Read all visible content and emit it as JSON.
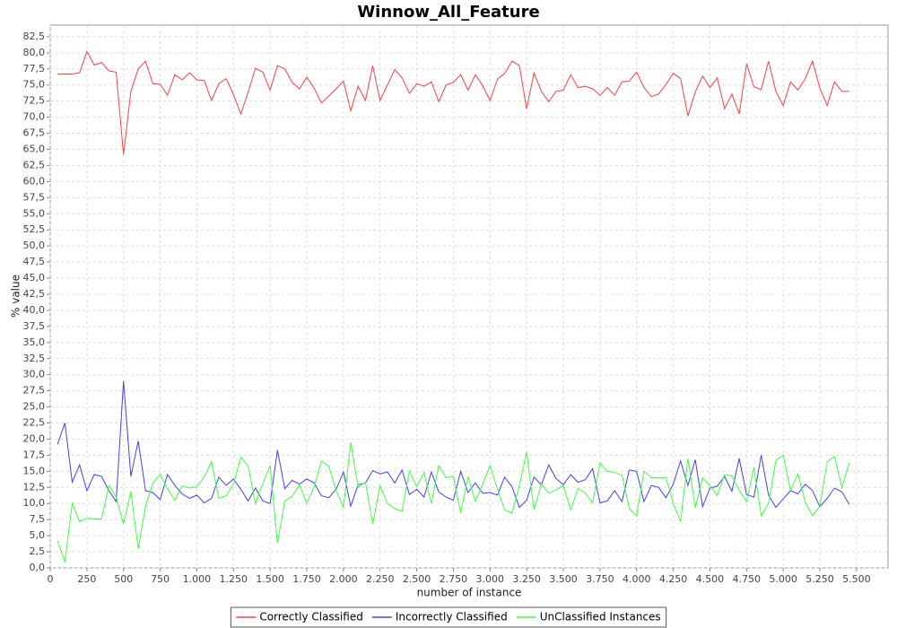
{
  "chart_data": {
    "type": "line",
    "title": "Winnow_All_Feature",
    "x_label": "number of instance",
    "y_label": "% value",
    "x": [
      50,
      100,
      150,
      200,
      250,
      300,
      350,
      400,
      450,
      500,
      550,
      600,
      650,
      700,
      750,
      800,
      850,
      900,
      950,
      1000,
      1050,
      1100,
      1150,
      1200,
      1250,
      1300,
      1350,
      1400,
      1450,
      1500,
      1550,
      1600,
      1650,
      1700,
      1750,
      1800,
      1850,
      1900,
      1950,
      2000,
      2050,
      2100,
      2150,
      2200,
      2250,
      2300,
      2350,
      2400,
      2450,
      2500,
      2550,
      2600,
      2650,
      2700,
      2750,
      2800,
      2850,
      2900,
      2950,
      3000,
      3050,
      3100,
      3150,
      3200,
      3250,
      3300,
      3350,
      3400,
      3450,
      3500,
      3550,
      3600,
      3650,
      3700,
      3750,
      3800,
      3850,
      3900,
      3950,
      4000,
      4050,
      4100,
      4150,
      4200,
      4250,
      4300,
      4350,
      4400,
      4450,
      4500,
      4550,
      4600,
      4650,
      4700,
      4750,
      4800,
      4850,
      4900,
      4950,
      5000,
      5050,
      5100,
      5150,
      5200,
      5250,
      5300,
      5350,
      5400,
      5450
    ],
    "series": [
      {
        "name": "Correctly Classified",
        "color": "#ff4040",
        "values": [
          76.7,
          76.7,
          76.7,
          76.9,
          80.2,
          78.1,
          78.5,
          77.2,
          77.0,
          64.2,
          74.0,
          77.5,
          78.7,
          75.2,
          75.1,
          73.4,
          76.6,
          75.8,
          76.9,
          75.8,
          75.7,
          72.6,
          75.2,
          76.0,
          73.5,
          70.5,
          73.9,
          77.6,
          77.0,
          74.2,
          78.0,
          77.5,
          75.4,
          74.4,
          76.2,
          74.5,
          72.2,
          73.3,
          74.4,
          75.6,
          71.0,
          74.8,
          72.6,
          78.0,
          72.6,
          75.0,
          77.4,
          76.1,
          73.7,
          75.2,
          74.8,
          75.5,
          72.4,
          75.0,
          75.4,
          76.6,
          74.2,
          76.6,
          74.9,
          72.6,
          75.9,
          76.8,
          78.7,
          78.0,
          71.3,
          76.9,
          74.0,
          72.4,
          74.0,
          74.2,
          76.6,
          74.6,
          74.8,
          74.4,
          73.4,
          74.6,
          73.4,
          75.5,
          75.6,
          77.0,
          74.6,
          73.2,
          73.6,
          75.1,
          76.8,
          76.0,
          70.2,
          73.9,
          76.4,
          74.6,
          76.1,
          71.3,
          73.6,
          70.5,
          78.3,
          74.7,
          74.3,
          78.7,
          74.0,
          71.8,
          75.5,
          74.2,
          76.0,
          78.7,
          74.5,
          71.8,
          75.5,
          74.0,
          74.0
        ]
      },
      {
        "name": "Incorrectly Classified",
        "color": "#4040ff",
        "values": [
          19.2,
          22.5,
          13.3,
          16.0,
          12.0,
          14.5,
          14.2,
          12.0,
          10.3,
          29.0,
          14.2,
          19.7,
          12.0,
          11.7,
          10.6,
          14.5,
          12.8,
          11.5,
          10.8,
          11.3,
          10.1,
          10.8,
          14.1,
          12.8,
          13.8,
          12.2,
          10.4,
          12.4,
          10.4,
          10.0,
          18.3,
          12.3,
          13.6,
          13.0,
          13.8,
          13.2,
          11.2,
          10.9,
          12.2,
          14.9,
          9.6,
          12.9,
          13.2,
          15.1,
          14.6,
          14.9,
          13.2,
          15.2,
          11.4,
          12.2,
          11.0,
          14.9,
          11.8,
          11.0,
          10.5,
          15.0,
          11.7,
          13.2,
          11.6,
          11.7,
          11.3,
          14.1,
          12.6,
          9.4,
          10.5,
          14.1,
          12.9,
          16.0,
          13.9,
          12.9,
          14.5,
          13.3,
          13.7,
          15.4,
          10.1,
          10.4,
          12.0,
          10.3,
          15.2,
          15.0,
          10.3,
          12.8,
          12.5,
          10.9,
          13.0,
          16.6,
          12.8,
          16.8,
          9.5,
          12.4,
          12.7,
          14.2,
          11.9,
          17.0,
          11.4,
          11.0,
          17.5,
          11.3,
          9.4,
          10.7,
          12.0,
          11.5,
          13.0,
          12.0,
          9.5,
          10.8,
          12.4,
          11.8,
          9.9
        ]
      },
      {
        "name": "UnClassified Instances",
        "color": "#40ff40",
        "values": [
          4.2,
          0.9,
          10.0,
          7.2,
          7.7,
          7.6,
          7.6,
          12.8,
          11.0,
          6.8,
          11.9,
          3.0,
          9.5,
          13.2,
          14.5,
          12.3,
          10.5,
          12.7,
          12.4,
          12.6,
          14.1,
          16.5,
          10.8,
          11.2,
          13.0,
          17.2,
          15.8,
          10.0,
          13.1,
          15.9,
          3.8,
          10.4,
          11.1,
          12.9,
          10.0,
          12.6,
          16.6,
          15.8,
          12.0,
          9.4,
          19.5,
          12.5,
          13.3,
          6.8,
          12.8,
          10.0,
          9.2,
          8.8,
          15.0,
          12.6,
          14.8,
          10.0,
          15.9,
          14.0,
          14.2,
          8.5,
          14.2,
          10.3,
          13.0,
          15.9,
          12.2,
          9.0,
          8.5,
          12.8,
          18.0,
          9.0,
          13.0,
          11.6,
          12.1,
          12.8,
          9.0,
          12.3,
          11.6,
          10.1,
          16.3,
          15.0,
          14.8,
          14.4,
          9.2,
          8.1,
          15.0,
          14.0,
          14.0,
          14.0,
          10.0,
          7.2,
          17.0,
          9.3,
          14.0,
          12.8,
          11.2,
          14.5,
          14.3,
          12.0,
          10.3,
          15.6,
          8.1,
          10.0,
          16.7,
          17.5,
          12.0,
          14.6,
          10.2,
          8.1,
          9.6,
          16.5,
          17.3,
          12.5,
          16.3
        ]
      }
    ],
    "xlim": [
      0,
      5715
    ],
    "ylim": [
      0,
      84.3
    ],
    "xticks": [
      0,
      250,
      500,
      750,
      {
        "value": 1000,
        "label": "1.000"
      },
      {
        "value": 1250,
        "label": "1.250"
      },
      {
        "value": 1500,
        "label": "1.500"
      },
      {
        "value": 1750,
        "label": "1.750"
      },
      {
        "value": 2000,
        "label": "2.000"
      },
      {
        "value": 2250,
        "label": "2.250"
      },
      {
        "value": 2500,
        "label": "2.500"
      },
      {
        "value": 2750,
        "label": "2.750"
      },
      {
        "value": 3000,
        "label": "3.000"
      },
      {
        "value": 3250,
        "label": "3.250"
      },
      {
        "value": 3500,
        "label": "3.500"
      },
      {
        "value": 3750,
        "label": "3.750"
      },
      {
        "value": 4000,
        "label": "4.000"
      },
      {
        "value": 4250,
        "label": "4.250"
      },
      {
        "value": 4500,
        "label": "4.500"
      },
      {
        "value": 4750,
        "label": "4.750"
      },
      {
        "value": 5000,
        "label": "5.000"
      },
      {
        "value": 5250,
        "label": "5.250"
      },
      {
        "value": 5500,
        "label": "5.500"
      }
    ],
    "yticks": [
      {
        "value": 0,
        "label": "0,0"
      },
      {
        "value": 2.5,
        "label": "2,5"
      },
      {
        "value": 5,
        "label": "5,0"
      },
      {
        "value": 7.5,
        "label": "7,5"
      },
      {
        "value": 10,
        "label": "10,0"
      },
      {
        "value": 12.5,
        "label": "12,5"
      },
      {
        "value": 15,
        "label": "15,0"
      },
      {
        "value": 17.5,
        "label": "17,5"
      },
      {
        "value": 20,
        "label": "20,0"
      },
      {
        "value": 22.5,
        "label": "22,5"
      },
      {
        "value": 25,
        "label": "25,0"
      },
      {
        "value": 27.5,
        "label": "27,5"
      },
      {
        "value": 30,
        "label": "30,0"
      },
      {
        "value": 32.5,
        "label": "32,5"
      },
      {
        "value": 35,
        "label": "35,0"
      },
      {
        "value": 37.5,
        "label": "37,5"
      },
      {
        "value": 40,
        "label": "40,0"
      },
      {
        "value": 42.5,
        "label": "42,5"
      },
      {
        "value": 45,
        "label": "45,0"
      },
      {
        "value": 47.5,
        "label": "47,5"
      },
      {
        "value": 50,
        "label": "50,0"
      },
      {
        "value": 52.5,
        "label": "52,5"
      },
      {
        "value": 55,
        "label": "55,0"
      },
      {
        "value": 57.5,
        "label": "57,5"
      },
      {
        "value": 60,
        "label": "60,0"
      },
      {
        "value": 62.5,
        "label": "62,5"
      },
      {
        "value": 65,
        "label": "65,0"
      },
      {
        "value": 67.5,
        "label": "67,5"
      },
      {
        "value": 70,
        "label": "70,0"
      },
      {
        "value": 72.5,
        "label": "72,5"
      },
      {
        "value": 75,
        "label": "75,0"
      },
      {
        "value": 77.5,
        "label": "77,5"
      },
      {
        "value": 80,
        "label": "80,0"
      },
      {
        "value": 82.5,
        "label": "82,5"
      }
    ],
    "grid": true,
    "legend": "bottom"
  }
}
